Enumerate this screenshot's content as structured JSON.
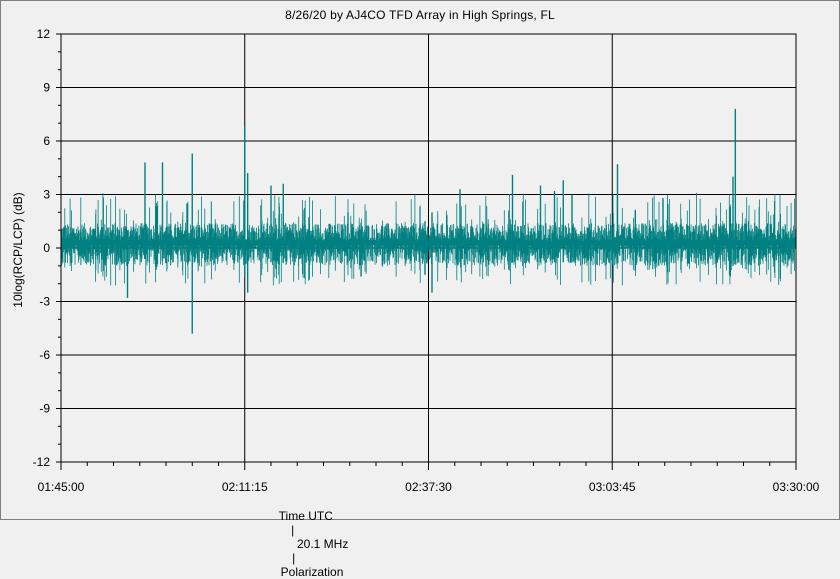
{
  "chart_data": {
    "type": "line",
    "title": "8/26/20  by  AJ4CO TFD Array  in  High Springs, FL",
    "ylabel": "10log(RCP/LCP) (dB)",
    "ylim": [
      -12,
      12
    ],
    "yticks": [
      "12",
      "9",
      "6",
      "3",
      "0",
      "-3",
      "-6",
      "-9",
      "-12"
    ],
    "xlim": [
      "01:45:00",
      "03:30:00"
    ],
    "xticks": [
      "01:45:00",
      "02:11:15",
      "02:37:30",
      "03:03:45",
      "03:30:00"
    ],
    "grid": true,
    "series": [
      {
        "color": "#008080",
        "baseline": 0.3,
        "noise_band": [
          -1.0,
          1.4
        ],
        "spikes": [
          {
            "t": "01:54:30",
            "min": -2.8,
            "max": 1.0
          },
          {
            "t": "01:57:00",
            "min": -0.6,
            "max": 4.8
          },
          {
            "t": "01:59:30",
            "min": -0.6,
            "max": 4.8
          },
          {
            "t": "02:03:00",
            "min": -0.8,
            "max": 2.5
          },
          {
            "t": "02:03:45",
            "min": -4.8,
            "max": 5.3
          },
          {
            "t": "02:11:15",
            "min": -1.5,
            "max": 6.8
          },
          {
            "t": "02:11:40",
            "min": -2.5,
            "max": 4.2
          },
          {
            "t": "02:15:00",
            "min": -0.8,
            "max": 3.5
          },
          {
            "t": "02:16:45",
            "min": -0.8,
            "max": 3.6
          },
          {
            "t": "02:26:00",
            "min": -0.8,
            "max": 2.0
          },
          {
            "t": "02:37:00",
            "min": -1.5,
            "max": 1.5
          },
          {
            "t": "02:38:00",
            "min": -2.5,
            "max": 2.0
          },
          {
            "t": "02:42:00",
            "min": -0.8,
            "max": 3.3
          },
          {
            "t": "02:49:30",
            "min": -0.8,
            "max": 4.1
          },
          {
            "t": "02:53:30",
            "min": -0.8,
            "max": 3.5
          },
          {
            "t": "02:55:30",
            "min": -0.8,
            "max": 3.2
          },
          {
            "t": "02:56:45",
            "min": -0.8,
            "max": 3.8
          },
          {
            "t": "02:58:00",
            "min": -0.8,
            "max": 3.0
          },
          {
            "t": "03:04:30",
            "min": -0.8,
            "max": 4.7
          },
          {
            "t": "03:11:00",
            "min": -0.8,
            "max": 2.8
          },
          {
            "t": "03:21:00",
            "min": -1.0,
            "max": 4.0
          },
          {
            "t": "03:21:20",
            "min": -0.7,
            "max": 7.8
          }
        ]
      }
    ]
  },
  "footer": {
    "time_label": "Time UTC",
    "sep1": "|",
    "freq_label": "20.1 MHz",
    "sep2": "|",
    "mode_label": "Polarization"
  },
  "colors": {
    "plot_bg": "#f0f0f0",
    "grid": "#000000",
    "trace": "#008080"
  }
}
